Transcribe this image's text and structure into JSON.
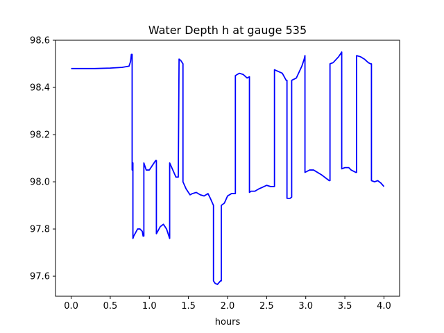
{
  "chart_data": {
    "type": "line",
    "title": "Water Depth h at gauge 535",
    "xlabel": "hours",
    "ylabel": "",
    "xlim": [
      -0.2,
      4.2
    ],
    "ylim": [
      97.515,
      98.6
    ],
    "x_ticks": [
      0.0,
      0.5,
      1.0,
      1.5,
      2.0,
      2.5,
      3.0,
      3.5,
      4.0
    ],
    "x_tick_labels": [
      "0.0",
      "0.5",
      "1.0",
      "1.5",
      "2.0",
      "2.5",
      "3.0",
      "3.5",
      "4.0"
    ],
    "y_ticks": [
      97.6,
      97.8,
      98.0,
      98.2,
      98.4,
      98.6
    ],
    "y_tick_labels": [
      "97.6",
      "97.8",
      "98.0",
      "98.2",
      "98.4",
      "98.6"
    ],
    "grid": false,
    "legend": "none",
    "series": [
      {
        "color": "#0000ff",
        "x": [
          0.0,
          0.3,
          0.5,
          0.65,
          0.74,
          0.76,
          0.77,
          0.78,
          0.78,
          0.79,
          0.79,
          0.8,
          0.8,
          0.85,
          0.88,
          0.91,
          0.92,
          0.93,
          0.93,
          0.96,
          1.0,
          1.04,
          1.08,
          1.09,
          1.09,
          1.14,
          1.18,
          1.22,
          1.25,
          1.26,
          1.26,
          1.3,
          1.34,
          1.37,
          1.38,
          1.4,
          1.43,
          1.43,
          1.47,
          1.52,
          1.55,
          1.6,
          1.65,
          1.7,
          1.75,
          1.78,
          1.82,
          1.82,
          1.84,
          1.87,
          1.91,
          1.92,
          1.92,
          1.96,
          2.0,
          2.05,
          2.1,
          2.1,
          2.15,
          2.2,
          2.25,
          2.28,
          2.28,
          2.3,
          2.33,
          2.35,
          2.4,
          2.5,
          2.55,
          2.6,
          2.6,
          2.7,
          2.75,
          2.76,
          2.76,
          2.8,
          2.82,
          2.82,
          2.88,
          2.95,
          2.98,
          2.99,
          2.99,
          3.05,
          3.1,
          3.2,
          3.3,
          3.31,
          3.31,
          3.35,
          3.42,
          3.45,
          3.46,
          3.46,
          3.5,
          3.55,
          3.58,
          3.64,
          3.65,
          3.65,
          3.7,
          3.75,
          3.8,
          3.83,
          3.84,
          3.84,
          3.88,
          3.92,
          3.96,
          4.0
        ],
        "y": [
          98.48,
          98.48,
          98.482,
          98.485,
          98.49,
          98.51,
          98.54,
          98.54,
          98.05,
          98.08,
          97.76,
          97.77,
          97.77,
          97.8,
          97.8,
          97.79,
          97.77,
          97.77,
          98.08,
          98.05,
          98.05,
          98.07,
          98.09,
          98.09,
          97.78,
          97.81,
          97.82,
          97.8,
          97.77,
          97.76,
          98.08,
          98.05,
          98.02,
          98.02,
          98.52,
          98.515,
          98.5,
          98.0,
          97.97,
          97.945,
          97.95,
          97.955,
          97.945,
          97.94,
          97.95,
          97.93,
          97.9,
          97.58,
          97.57,
          97.565,
          97.58,
          97.58,
          97.9,
          97.91,
          97.94,
          97.95,
          97.95,
          98.45,
          98.46,
          98.455,
          98.44,
          98.445,
          97.955,
          97.96,
          97.96,
          97.96,
          97.97,
          97.985,
          97.98,
          97.98,
          98.475,
          98.46,
          98.43,
          98.43,
          97.93,
          97.93,
          97.935,
          98.43,
          98.44,
          98.49,
          98.52,
          98.535,
          98.04,
          98.05,
          98.05,
          98.03,
          98.005,
          98.005,
          98.5,
          98.505,
          98.53,
          98.545,
          98.55,
          98.055,
          98.06,
          98.06,
          98.05,
          98.04,
          98.04,
          98.535,
          98.53,
          98.52,
          98.505,
          98.5,
          98.5,
          98.005,
          98.0,
          98.005,
          97.995,
          97.98
        ]
      }
    ]
  }
}
